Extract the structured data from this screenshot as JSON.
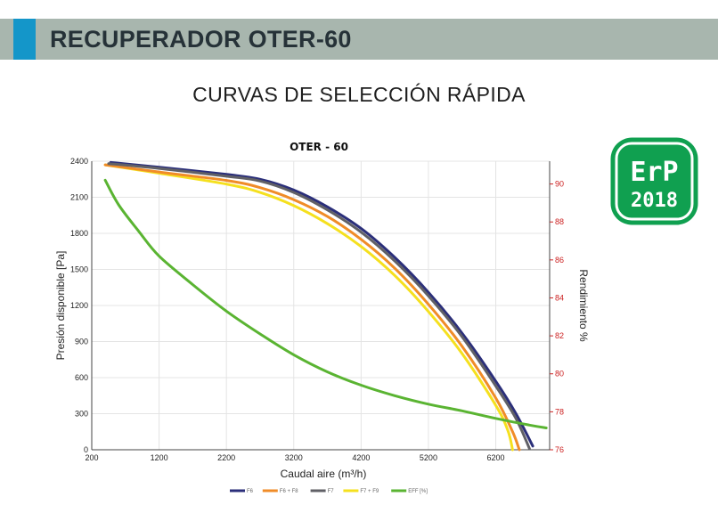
{
  "header": {
    "title": "RECUPERADOR OTER-60",
    "colors": {
      "band": "#a8b6ae",
      "accent": "#1496c9"
    }
  },
  "section_title": "CURVAS DE SELECCIÓN RÁPIDA",
  "badge": {
    "line1": "ErP",
    "line2": "2018",
    "color": "#10a050"
  },
  "chart_data": {
    "type": "line",
    "title": "OTER - 60",
    "xlabel": "Caudal aire (m³/h)",
    "ylabel": "Presión disponible [Pa]",
    "y2label": "Rendimiento %",
    "xlim": [
      200,
      7000
    ],
    "ylim": [
      0,
      2400
    ],
    "y2lim": [
      76,
      91.2
    ],
    "x_ticks": [
      200,
      1200,
      2200,
      3200,
      4200,
      5200,
      6200
    ],
    "y_ticks": [
      0,
      300,
      600,
      900,
      1200,
      1500,
      1800,
      2100,
      2400
    ],
    "y2_ticks": [
      76,
      78,
      80,
      82,
      84,
      86,
      88,
      90
    ],
    "grid": true,
    "legend_position": "bottom",
    "series": [
      {
        "name": "F6",
        "axis": "left",
        "color": "#2b2f7a",
        "x": [
          480,
          1200,
          2200,
          2700,
          3200,
          3700,
          4200,
          4700,
          5200,
          5700,
          6200,
          6500,
          6750
        ],
        "y": [
          2390,
          2350,
          2290,
          2250,
          2160,
          2020,
          1840,
          1600,
          1310,
          970,
          570,
          300,
          30
        ]
      },
      {
        "name": "F6 + F8",
        "axis": "left",
        "color": "#f08c28",
        "x": [
          400,
          1200,
          2200,
          2700,
          3200,
          3700,
          4200,
          4700,
          5200,
          5700,
          6200,
          6450,
          6550
        ],
        "y": [
          2370,
          2310,
          2240,
          2180,
          2080,
          1940,
          1750,
          1510,
          1210,
          860,
          430,
          150,
          0
        ]
      },
      {
        "name": "F7",
        "axis": "left",
        "color": "#606066",
        "x": [
          450,
          1200,
          2200,
          2700,
          3200,
          3700,
          4200,
          4700,
          5200,
          5700,
          6200,
          6500,
          6700
        ],
        "y": [
          2380,
          2340,
          2275,
          2235,
          2140,
          1995,
          1810,
          1570,
          1280,
          940,
          530,
          260,
          10
        ]
      },
      {
        "name": "F7 + F9",
        "axis": "left",
        "color": "#f5e01e",
        "x": [
          400,
          1200,
          2200,
          2700,
          3200,
          3700,
          4200,
          4700,
          5200,
          5700,
          6200,
          6380,
          6450
        ],
        "y": [
          2370,
          2300,
          2210,
          2140,
          2030,
          1880,
          1690,
          1450,
          1150,
          800,
          370,
          160,
          0
        ]
      },
      {
        "name": "EFF [%]",
        "axis": "right",
        "color": "#5ab432",
        "x": [
          400,
          600,
          900,
          1200,
          1700,
          2200,
          2700,
          3200,
          3700,
          4200,
          4700,
          5200,
          5700,
          6200,
          6700,
          6950
        ],
        "y": [
          90.2,
          88.9,
          87.5,
          86.2,
          84.7,
          83.3,
          82.1,
          81.0,
          80.1,
          79.4,
          78.85,
          78.4,
          78.05,
          77.65,
          77.3,
          77.15
        ]
      }
    ]
  }
}
